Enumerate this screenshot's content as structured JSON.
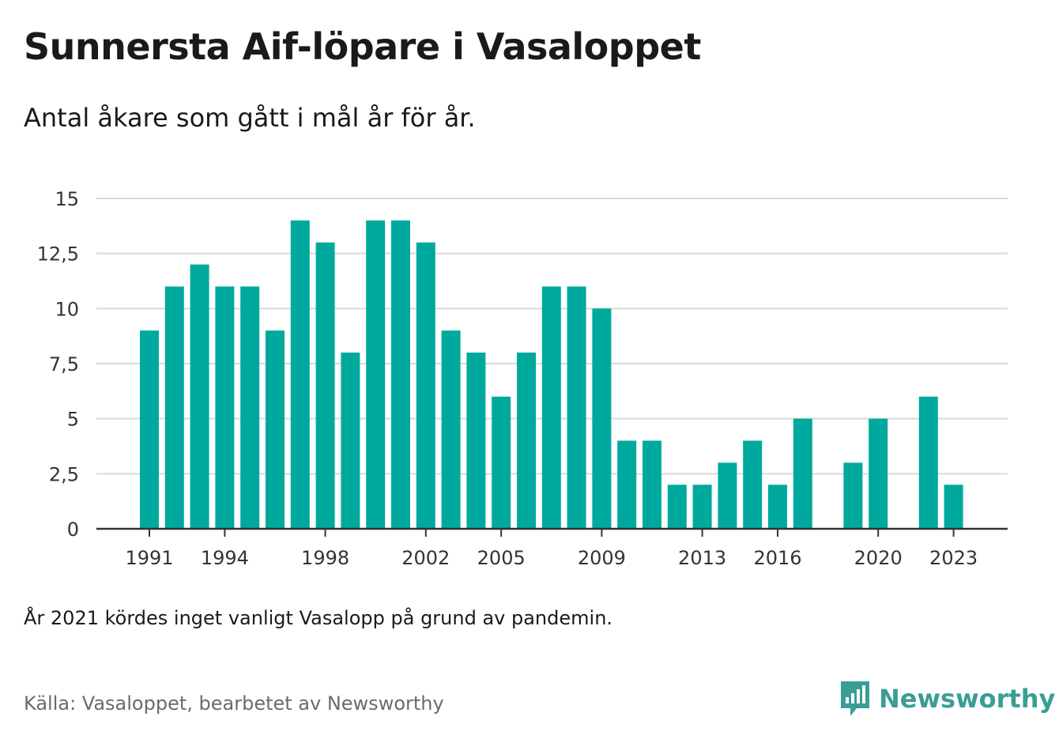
{
  "header": {
    "title": "Sunnersta Aif-löpare i Vasaloppet",
    "subtitle": "Antal åkare som gått i mål år för år."
  },
  "footer": {
    "note": "År 2021 kördes inget vanligt Vasalopp på grund av pandemin.",
    "source": "Källa: Vasaloppet, bearbetet av Newsworthy",
    "brand": "Newsworthy",
    "brand_icon": "newsworthy-logo-icon"
  },
  "colors": {
    "bar": "#00a99d",
    "grid": "#d9d9d9",
    "axis": "#333333",
    "brand": "#3a9e94"
  },
  "chart_data": {
    "type": "bar",
    "title": "Sunnersta Aif-löpare i Vasaloppet",
    "subtitle": "Antal åkare som gått i mål år för år.",
    "categories": [
      "1991",
      "1992",
      "1993",
      "1994",
      "1995",
      "1996",
      "1997",
      "1998",
      "1999",
      "2000",
      "2001",
      "2002",
      "2003",
      "2004",
      "2005",
      "2006",
      "2007",
      "2008",
      "2009",
      "2010",
      "2011",
      "2012",
      "2013",
      "2014",
      "2015",
      "2016",
      "2017",
      "2018",
      "2019",
      "2020",
      "2021",
      "2022",
      "2023"
    ],
    "values": [
      9,
      11,
      12,
      11,
      11,
      9,
      14,
      13,
      8,
      14,
      14,
      13,
      9,
      8,
      6,
      8,
      11,
      11,
      10,
      4,
      4,
      2,
      2,
      3,
      4,
      2,
      5,
      0,
      3,
      5,
      0,
      6,
      2
    ],
    "x_tick_labels": [
      "1991",
      "1994",
      "1998",
      "2002",
      "2005",
      "2009",
      "2013",
      "2016",
      "2020",
      "2023"
    ],
    "y_ticks": [
      0,
      2.5,
      5,
      7.5,
      10,
      12.5,
      15
    ],
    "y_tick_labels": [
      "0",
      "2,5",
      "5",
      "7,5",
      "10",
      "12,5",
      "15"
    ],
    "ylim": [
      0,
      15
    ],
    "xlabel": "",
    "ylabel": "",
    "grid": true,
    "legend": "none"
  }
}
